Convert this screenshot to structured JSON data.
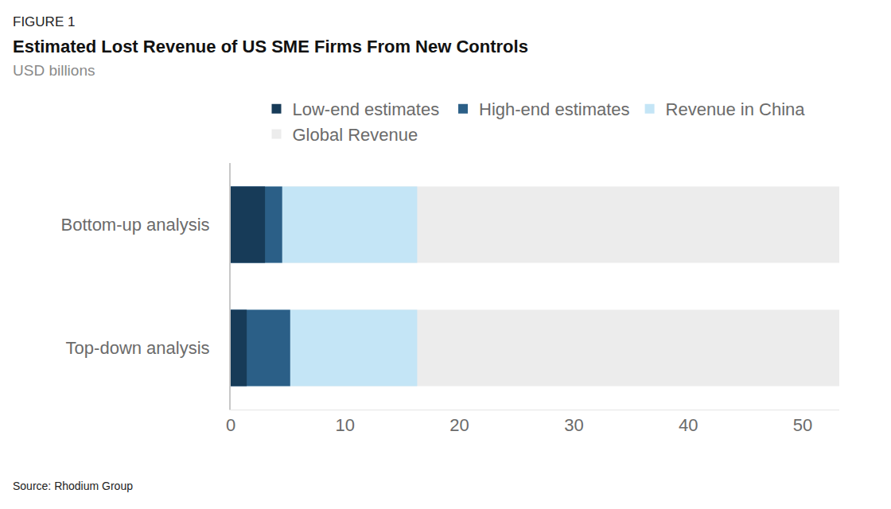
{
  "chart_data": {
    "type": "bar",
    "orientation": "horizontal",
    "stacked": false,
    "figure_label": "FIGURE 1",
    "title": "Estimated Lost Revenue of US SME Firms From New Controls",
    "subtitle": "USD billions",
    "source": "Source: Rhodium Group",
    "categories": [
      "Bottom-up analysis",
      "Top-down analysis"
    ],
    "series": [
      {
        "name": "Low-end estimates",
        "color": "#173b58",
        "values": [
          3.0,
          1.4
        ]
      },
      {
        "name": "High-end estimates",
        "color": "#2b5f87",
        "values": [
          4.5,
          5.2
        ]
      },
      {
        "name": "Revenue in China",
        "color": "#c4e5f6",
        "values": [
          16.3,
          16.3
        ]
      },
      {
        "name": "Global Revenue",
        "color": "#ececec",
        "values": [
          53.2,
          53.2
        ]
      }
    ],
    "xlim": [
      0,
      53.2
    ],
    "xticks": [
      0,
      10,
      20,
      30,
      40,
      50
    ],
    "grid": false,
    "legend": "top"
  }
}
